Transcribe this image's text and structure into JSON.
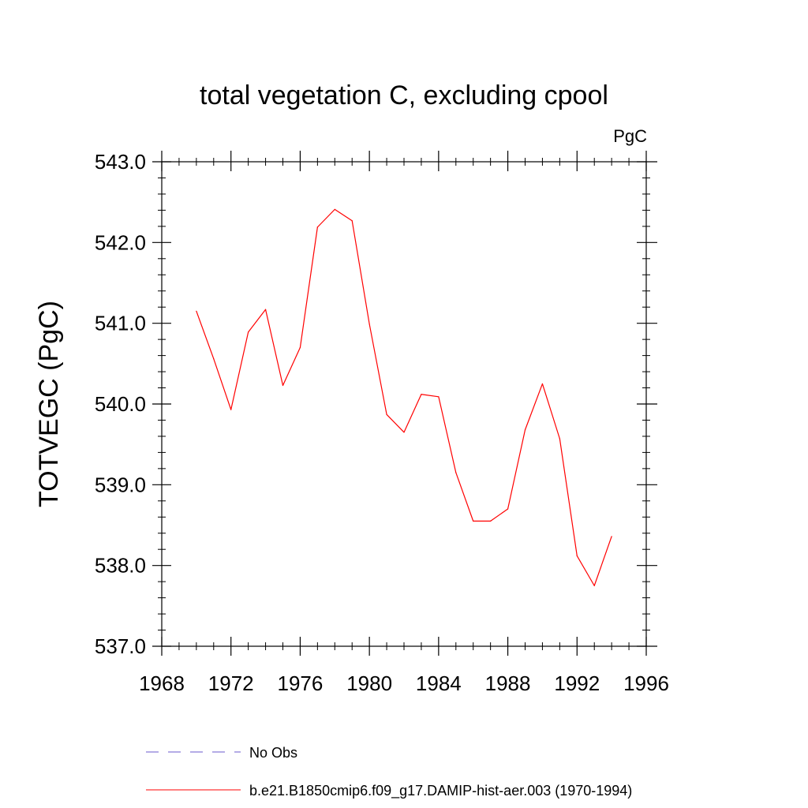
{
  "chart_data": {
    "type": "line",
    "title": "total vegetation C, excluding cpool",
    "units_label": "PgC",
    "ylabel": "TOTVEGC  (PgC)",
    "xlabel": "",
    "xlim": [
      1968,
      1996
    ],
    "ylim": [
      537.0,
      543.0
    ],
    "x_ticks": [
      1968,
      1972,
      1976,
      1980,
      1984,
      1988,
      1992,
      1996
    ],
    "x_tick_labels": [
      "1968",
      "1972",
      "1976",
      "1980",
      "1984",
      "1988",
      "1992",
      "1996"
    ],
    "y_ticks": [
      537.0,
      538.0,
      539.0,
      540.0,
      541.0,
      542.0,
      543.0
    ],
    "y_tick_labels": [
      "537.0",
      "538.0",
      "539.0",
      "540.0",
      "541.0",
      "542.0",
      "543.0"
    ],
    "grid": false,
    "legend_position": "bottom",
    "legend": [
      {
        "label": "No Obs",
        "color": "#6a5acd",
        "dash": "dashed"
      },
      {
        "label": "b.e21.B1850cmip6.f09_g17.DAMIP-hist-aer.003 (1970-1994)",
        "color": "#ff0000",
        "dash": "solid"
      }
    ],
    "series": [
      {
        "name": "b.e21.B1850cmip6.f09_g17.DAMIP-hist-aer.003 (1970-1994)",
        "color": "#ff0000",
        "x": [
          1970,
          1971,
          1972,
          1973,
          1974,
          1975,
          1976,
          1977,
          1978,
          1979,
          1980,
          1981,
          1982,
          1983,
          1984,
          1985,
          1986,
          1987,
          1988,
          1989,
          1990,
          1991,
          1992,
          1993,
          1994
        ],
        "y": [
          541.15,
          540.56,
          539.93,
          540.89,
          541.17,
          540.23,
          540.7,
          542.19,
          542.41,
          542.27,
          540.99,
          539.87,
          539.65,
          540.12,
          540.09,
          539.15,
          538.55,
          538.55,
          538.7,
          539.68,
          540.25,
          539.57,
          538.12,
          537.75,
          538.36
        ]
      }
    ]
  }
}
